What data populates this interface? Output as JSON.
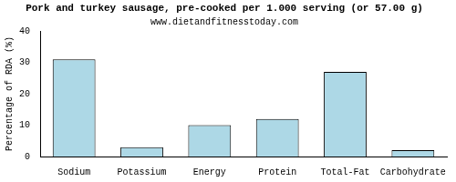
{
  "chart_data": {
    "type": "bar",
    "title": "Pork and turkey sausage, pre-cooked per 1.000 serving (or 57.00 g)",
    "subtitle": "www.dietandfitnesstoday.com",
    "y_label": "Percentage of RDA (%)",
    "categories": [
      "Sodium",
      "Potassium",
      "Energy",
      "Protein",
      "Total-Fat",
      "Carbohydrate"
    ],
    "values": [
      31,
      3,
      10,
      12,
      27,
      2
    ],
    "color": "#add8e6",
    "ylim": [
      0,
      40
    ],
    "yticks": [
      0,
      10,
      20,
      30,
      40
    ],
    "grid": false
  }
}
